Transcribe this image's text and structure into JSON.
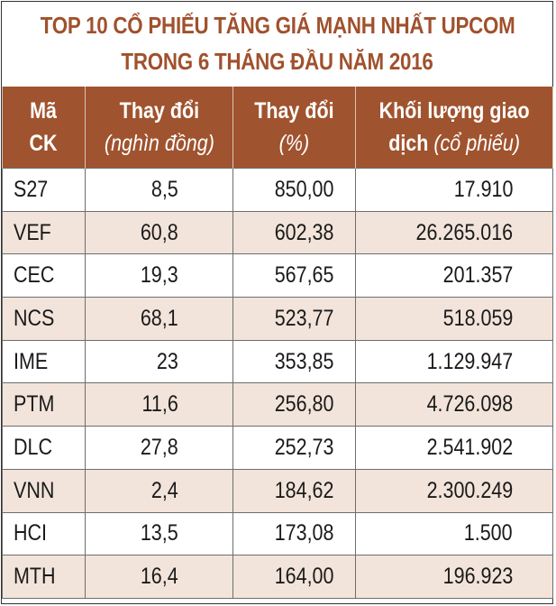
{
  "title": {
    "line1": "TOP 10 CỔ PHIẾU TĂNG GIÁ MẠNH NHẤT UPCOM",
    "line2": "TRONG 6 THÁNG ĐẦU NĂM 2016"
  },
  "colors": {
    "accent": "#a0532f",
    "row_alt": "#f2e4da"
  },
  "headers": {
    "code": {
      "line1": "Mã",
      "line2": "CK"
    },
    "change": {
      "main": "Thay đổi",
      "sub": "(nghìn đồng)"
    },
    "change_pct": {
      "main": "Thay đổi",
      "sub": "(%)"
    },
    "volume": {
      "main": "Khối lượng giao",
      "main2": "dịch",
      "sub": "(cổ phiếu)"
    }
  },
  "rows": [
    {
      "code": "S27",
      "change": "8,5",
      "change_pct": "850,00",
      "volume": "17.910"
    },
    {
      "code": "VEF",
      "change": "60,8",
      "change_pct": "602,38",
      "volume": "26.265.016"
    },
    {
      "code": "CEC",
      "change": "19,3",
      "change_pct": "567,65",
      "volume": "201.357"
    },
    {
      "code": "NCS",
      "change": "68,1",
      "change_pct": "523,77",
      "volume": "518.059"
    },
    {
      "code": "IME",
      "change": "23",
      "change_pct": "353,85",
      "volume": "1.129.947"
    },
    {
      "code": "PTM",
      "change": "11,6",
      "change_pct": "256,80",
      "volume": "4.726.098"
    },
    {
      "code": "DLC",
      "change": "27,8",
      "change_pct": "252,73",
      "volume": "2.541.902"
    },
    {
      "code": "VNN",
      "change": "2,4",
      "change_pct": "184,62",
      "volume": "2.300.249"
    },
    {
      "code": "HCI",
      "change": "13,5",
      "change_pct": "173,08",
      "volume": "1.500"
    },
    {
      "code": "MTH",
      "change": "16,4",
      "change_pct": "164,00",
      "volume": "196.923"
    }
  ]
}
